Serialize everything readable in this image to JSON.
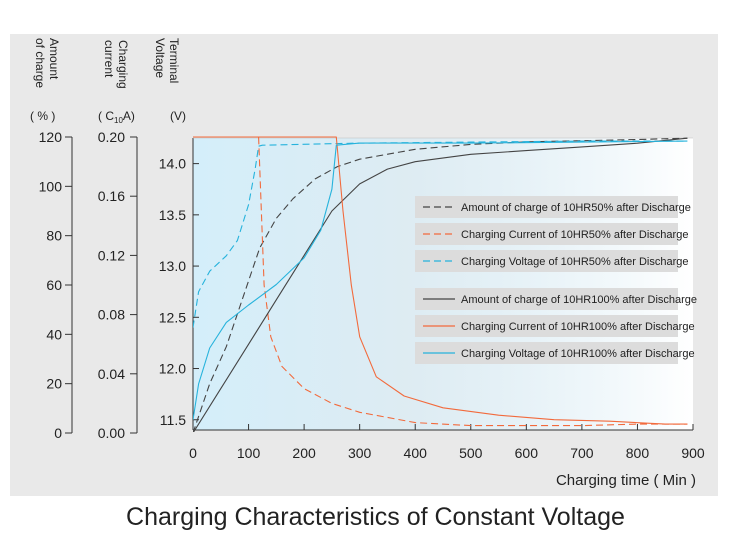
{
  "caption": "Charging Characteristics of Constant Voltage",
  "colors": {
    "panel_bg": "#e9e9e9",
    "plot_bg_left": "#d4eefa",
    "plot_bg_right": "#ffffff",
    "legend_bg": "#dcdcdc",
    "dark": "#444444",
    "orange": "#f26a3c",
    "cyan": "#27b3dc"
  },
  "axes": {
    "charge": {
      "line1": "Amount",
      "line2": "of charge",
      "unit": "( % )",
      "ticks": [
        "0",
        "20",
        "40",
        "60",
        "80",
        "100",
        "120"
      ],
      "range": [
        0,
        120
      ]
    },
    "current": {
      "line1": "Charging",
      "line2": "current",
      "unit_main": "( C",
      "unit_sub": "10",
      "unit_end": "A)",
      "ticks": [
        "0.00",
        "0.04",
        "0.08",
        "0.12",
        "0.16",
        "0.20"
      ],
      "range": [
        0,
        0.2
      ]
    },
    "voltage": {
      "line1": "Terminal",
      "line2": "Voltage",
      "unit": "(V)",
      "ticks": [
        "11.5",
        "12.0",
        "12.5",
        "13.0",
        "13.5",
        "14.0"
      ],
      "range": [
        11.4,
        14.25
      ]
    },
    "x": {
      "label": "Charging time ( Min )",
      "ticks": [
        "0",
        "100",
        "200",
        "300",
        "400",
        "500",
        "600",
        "700",
        "800",
        "900"
      ],
      "range": [
        0,
        900
      ]
    }
  },
  "chart_data": {
    "type": "line",
    "title": "Charging Characteristics of Constant Voltage",
    "xlabel": "Charging time ( Min )",
    "xlim": [
      0,
      900
    ],
    "axes": [
      {
        "id": "charge",
        "label": "Amount of charge (%)",
        "range": [
          0,
          120
        ]
      },
      {
        "id": "current",
        "label": "Charging current (C10A)",
        "range": [
          0,
          0.2
        ]
      },
      {
        "id": "voltage",
        "label": "Terminal Voltage (V)",
        "range": [
          11.4,
          14.25
        ]
      }
    ],
    "legend_position": "center-right",
    "series": [
      {
        "name": "Amount of charge of 10HR50% after Discharge",
        "axis": "charge",
        "color": "#444444",
        "dashed": true,
        "points": [
          [
            0,
            0
          ],
          [
            30,
            20
          ],
          [
            60,
            35
          ],
          [
            90,
            55
          ],
          [
            120,
            75
          ],
          [
            150,
            87
          ],
          [
            180,
            95
          ],
          [
            220,
            103
          ],
          [
            260,
            108
          ],
          [
            300,
            111
          ],
          [
            400,
            115
          ],
          [
            500,
            117
          ],
          [
            600,
            118
          ],
          [
            700,
            118.5
          ],
          [
            800,
            119
          ],
          [
            890,
            119.5
          ]
        ]
      },
      {
        "name": "Charging Current of 10HR50% after Discharge",
        "axis": "current",
        "color": "#f26a3c",
        "dashed": true,
        "points": [
          [
            0,
            0.2
          ],
          [
            118,
            0.2
          ],
          [
            122,
            0.16
          ],
          [
            128,
            0.1
          ],
          [
            140,
            0.065
          ],
          [
            160,
            0.045
          ],
          [
            200,
            0.03
          ],
          [
            250,
            0.02
          ],
          [
            300,
            0.014
          ],
          [
            400,
            0.007
          ],
          [
            500,
            0.005
          ],
          [
            600,
            0.005
          ],
          [
            700,
            0.005
          ],
          [
            800,
            0.006
          ],
          [
            890,
            0.006
          ]
        ]
      },
      {
        "name": "Charging Voltage of 10HR50% after Discharge",
        "axis": "voltage",
        "color": "#27b3dc",
        "dashed": true,
        "points": [
          [
            0,
            12.4
          ],
          [
            10,
            12.75
          ],
          [
            30,
            12.95
          ],
          [
            60,
            13.1
          ],
          [
            80,
            13.25
          ],
          [
            100,
            13.6
          ],
          [
            112,
            13.95
          ],
          [
            118,
            14.17
          ],
          [
            125,
            14.18
          ],
          [
            300,
            14.2
          ],
          [
            500,
            14.21
          ],
          [
            700,
            14.22
          ],
          [
            890,
            14.22
          ]
        ]
      },
      {
        "name": "Amount of charge of 10HR100% after Discharge",
        "axis": "charge",
        "color": "#444444",
        "dashed": false,
        "points": [
          [
            0,
            0
          ],
          [
            50,
            18
          ],
          [
            100,
            36
          ],
          [
            150,
            54
          ],
          [
            200,
            72
          ],
          [
            250,
            90
          ],
          [
            300,
            101
          ],
          [
            350,
            107
          ],
          [
            400,
            110
          ],
          [
            500,
            113
          ],
          [
            600,
            114.5
          ],
          [
            700,
            116
          ],
          [
            800,
            117.5
          ],
          [
            890,
            119.5
          ]
        ]
      },
      {
        "name": "Charging Current of 10HR100% after Discharge",
        "axis": "current",
        "color": "#f26a3c",
        "dashed": false,
        "points": [
          [
            0,
            0.2
          ],
          [
            258,
            0.2
          ],
          [
            270,
            0.15
          ],
          [
            285,
            0.1
          ],
          [
            300,
            0.065
          ],
          [
            330,
            0.038
          ],
          [
            380,
            0.025
          ],
          [
            450,
            0.017
          ],
          [
            550,
            0.012
          ],
          [
            650,
            0.009
          ],
          [
            750,
            0.008
          ],
          [
            850,
            0.006
          ],
          [
            890,
            0.006
          ]
        ]
      },
      {
        "name": "Charging Voltage of 10HR100% after Discharge",
        "axis": "voltage",
        "color": "#27b3dc",
        "dashed": false,
        "points": [
          [
            0,
            11.5
          ],
          [
            10,
            11.85
          ],
          [
            30,
            12.2
          ],
          [
            60,
            12.45
          ],
          [
            100,
            12.62
          ],
          [
            150,
            12.82
          ],
          [
            200,
            13.08
          ],
          [
            230,
            13.35
          ],
          [
            250,
            13.75
          ],
          [
            258,
            14.18
          ],
          [
            300,
            14.2
          ],
          [
            500,
            14.2
          ],
          [
            700,
            14.21
          ],
          [
            890,
            14.22
          ]
        ]
      }
    ]
  }
}
